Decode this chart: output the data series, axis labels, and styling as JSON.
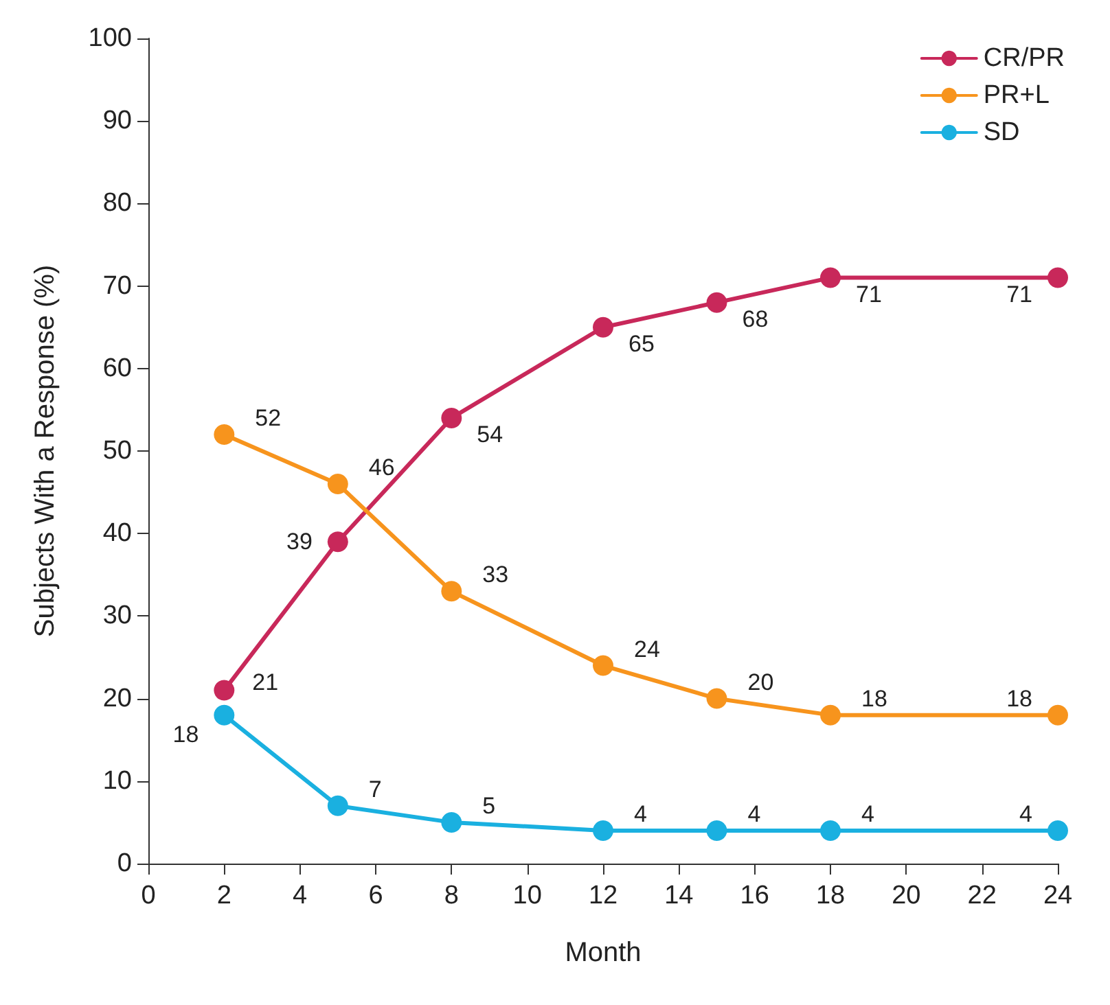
{
  "chart_data": {
    "type": "line",
    "xlabel": "Month",
    "ylabel": "Subjects With a Response (%)",
    "x": [
      2,
      5,
      8,
      12,
      15,
      18,
      24
    ],
    "series": [
      {
        "name": "CR/PR",
        "color": "#c8285a",
        "values": [
          21,
          39,
          54,
          65,
          68,
          71,
          71
        ]
      },
      {
        "name": "PR+L",
        "color": "#f7941d",
        "values": [
          52,
          46,
          33,
          24,
          20,
          18,
          18
        ]
      },
      {
        "name": "SD",
        "color": "#1ab0e0",
        "values": [
          18,
          7,
          5,
          4,
          4,
          4,
          4
        ]
      }
    ],
    "xlim": [
      0,
      24
    ],
    "xticks": [
      0,
      2,
      4,
      6,
      8,
      10,
      12,
      14,
      16,
      18,
      20,
      22,
      24
    ],
    "ylim": [
      0,
      100
    ],
    "yticks": [
      0,
      10,
      20,
      30,
      40,
      50,
      60,
      70,
      80,
      90,
      100
    ],
    "data_labels": true,
    "legend": "top right",
    "grid": false,
    "marker": "circle",
    "line_style": "solid"
  }
}
